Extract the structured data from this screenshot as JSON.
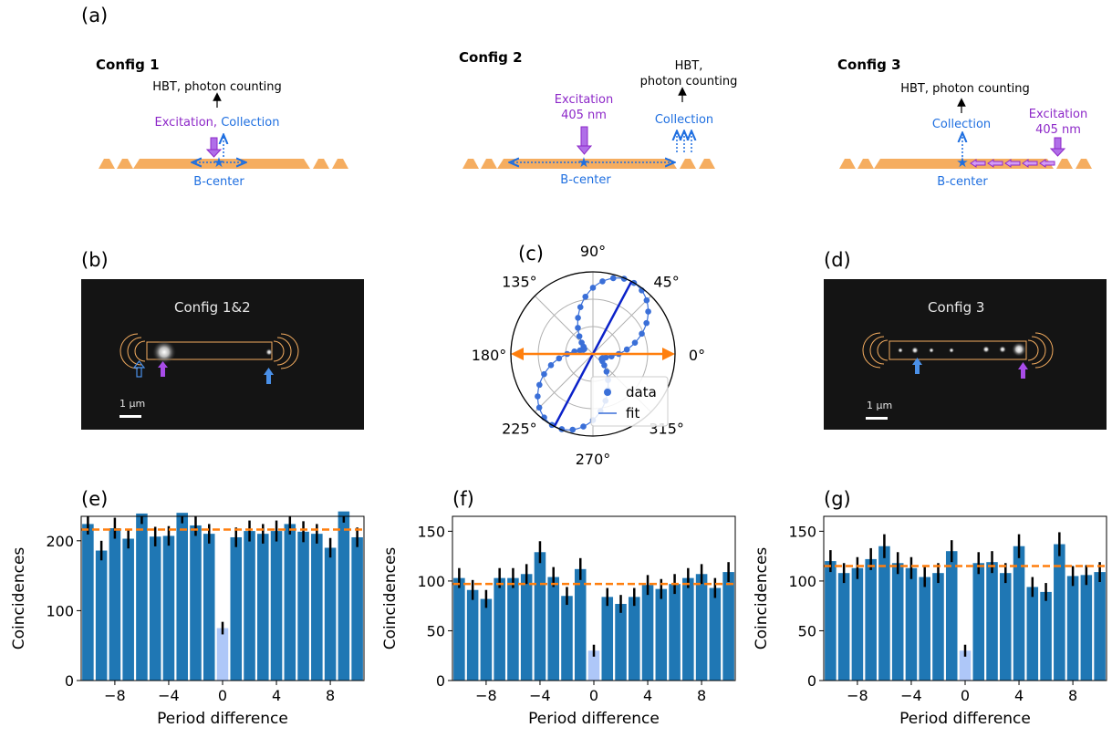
{
  "panels": {
    "a": "(a)",
    "b": "(b)",
    "c": "(c)",
    "d": "(d)",
    "e": "(e)",
    "f": "(f)",
    "g": "(g)"
  },
  "schematic": {
    "config1": {
      "title": "Config 1",
      "detector": "HBT, photon counting",
      "excitation": "Excitation,",
      "collection": "Collection",
      "center": "B-center"
    },
    "config2": {
      "title": "Config 2",
      "detector_line1": "HBT,",
      "detector_line2": "photon counting",
      "excitation_line1": "Excitation",
      "excitation_line2": "405 nm",
      "collection": "Collection",
      "center": "B-center"
    },
    "config3": {
      "title": "Config 3",
      "detector": "HBT, photon counting",
      "collection": "Collection",
      "excitation_line1": "Excitation",
      "excitation_line2": "405 nm",
      "center": "B-center"
    }
  },
  "images": {
    "b": {
      "label": "Config 1&2",
      "scale": "1 μm"
    },
    "d": {
      "label": "Config 3",
      "scale": "1 μm"
    }
  },
  "colors": {
    "waveguide": "#f5ad60",
    "purple": "#8d28c8",
    "blue": "#1f6fe0",
    "bar": "#1f77b4",
    "bar_zero": "#aec7f8",
    "mean_line": "#ff7f0e",
    "polar_fit": "#0b22c9",
    "polar_data": "#3a6fd8"
  },
  "polar": {
    "angle_labels": [
      "0°",
      "45°",
      "90°",
      "135°",
      "180°",
      "225°",
      "270°",
      "315°"
    ],
    "legend": {
      "data": "data",
      "fit": "fit"
    },
    "fit_axis_deg": 62,
    "excitation_axis_deg": 0,
    "data_r": [
      0.19,
      0.23,
      0.31,
      0.4,
      0.52,
      0.63,
      0.74,
      0.84,
      0.92,
      0.98,
      1.0,
      0.98,
      0.93,
      0.86,
      0.76,
      0.65,
      0.53,
      0.41,
      0.3,
      0.21,
      0.15,
      0.13,
      0.15,
      0.19,
      0.19,
      0.23,
      0.31,
      0.4,
      0.52,
      0.63,
      0.74,
      0.84,
      0.92,
      0.98,
      1.0,
      0.98,
      0.93,
      0.86,
      0.76,
      0.65,
      0.53,
      0.41,
      0.3,
      0.21,
      0.15,
      0.13,
      0.15,
      0.19
    ]
  },
  "chart_data": [
    {
      "type": "bar",
      "panel": "e",
      "xlabel": "Period difference",
      "ylabel": "Coincidences",
      "x": [
        -10,
        -9,
        -8,
        -7,
        -6,
        -5,
        -4,
        -3,
        -2,
        -1,
        0,
        1,
        2,
        3,
        4,
        5,
        6,
        7,
        8,
        9,
        10
      ],
      "values": [
        224,
        186,
        218,
        203,
        239,
        206,
        207,
        240,
        222,
        210,
        75,
        205,
        214,
        210,
        214,
        224,
        213,
        210,
        190,
        242,
        205
      ],
      "errors": [
        15,
        14,
        15,
        14,
        15,
        14,
        14,
        15,
        15,
        14,
        9,
        14,
        15,
        14,
        15,
        15,
        15,
        14,
        14,
        16,
        14
      ],
      "mean_line": 216,
      "xlim": [
        -10,
        10
      ],
      "ylim": [
        0,
        235
      ],
      "xticks": [
        "−8",
        "−4",
        "0",
        "4",
        "8"
      ],
      "yticks": [
        "0",
        "100",
        "200"
      ]
    },
    {
      "type": "bar",
      "panel": "f",
      "xlabel": "Period difference",
      "ylabel": "Coincidences",
      "x": [
        -10,
        -9,
        -8,
        -7,
        -6,
        -5,
        -4,
        -3,
        -2,
        -1,
        0,
        1,
        2,
        3,
        4,
        5,
        6,
        7,
        8,
        9,
        10
      ],
      "values": [
        103,
        91,
        82,
        103,
        103,
        107,
        129,
        104,
        85,
        112,
        30,
        84,
        77,
        84,
        96,
        92,
        97,
        103,
        107,
        93,
        109
      ],
      "errors": [
        10,
        10,
        9,
        10,
        10,
        10,
        11,
        10,
        9,
        11,
        6,
        9,
        9,
        9,
        10,
        10,
        10,
        10,
        10,
        10,
        10
      ],
      "mean_line": 97,
      "xlim": [
        -10,
        10
      ],
      "ylim": [
        0,
        165
      ],
      "xticks": [
        "−8",
        "−4",
        "0",
        "4",
        "8"
      ],
      "yticks": [
        "0",
        "50",
        "100",
        "150"
      ]
    },
    {
      "type": "bar",
      "panel": "g",
      "xlabel": "Period difference",
      "ylabel": "Coincidences",
      "x": [
        -10,
        -9,
        -8,
        -7,
        -6,
        -5,
        -4,
        -3,
        -2,
        -1,
        0,
        1,
        2,
        3,
        4,
        5,
        6,
        7,
        8,
        9,
        10
      ],
      "values": [
        120,
        108,
        113,
        122,
        135,
        118,
        113,
        104,
        108,
        130,
        30,
        118,
        119,
        108,
        135,
        94,
        89,
        137,
        105,
        106,
        109
      ],
      "errors": [
        11,
        10,
        11,
        11,
        12,
        11,
        11,
        10,
        10,
        11,
        6,
        11,
        11,
        10,
        12,
        10,
        9,
        12,
        10,
        10,
        10
      ],
      "mean_line": 115,
      "xlim": [
        -10,
        10
      ],
      "ylim": [
        0,
        165
      ],
      "xticks": [
        "−8",
        "−4",
        "0",
        "4",
        "8"
      ],
      "yticks": [
        "0",
        "50",
        "100",
        "150"
      ]
    }
  ]
}
